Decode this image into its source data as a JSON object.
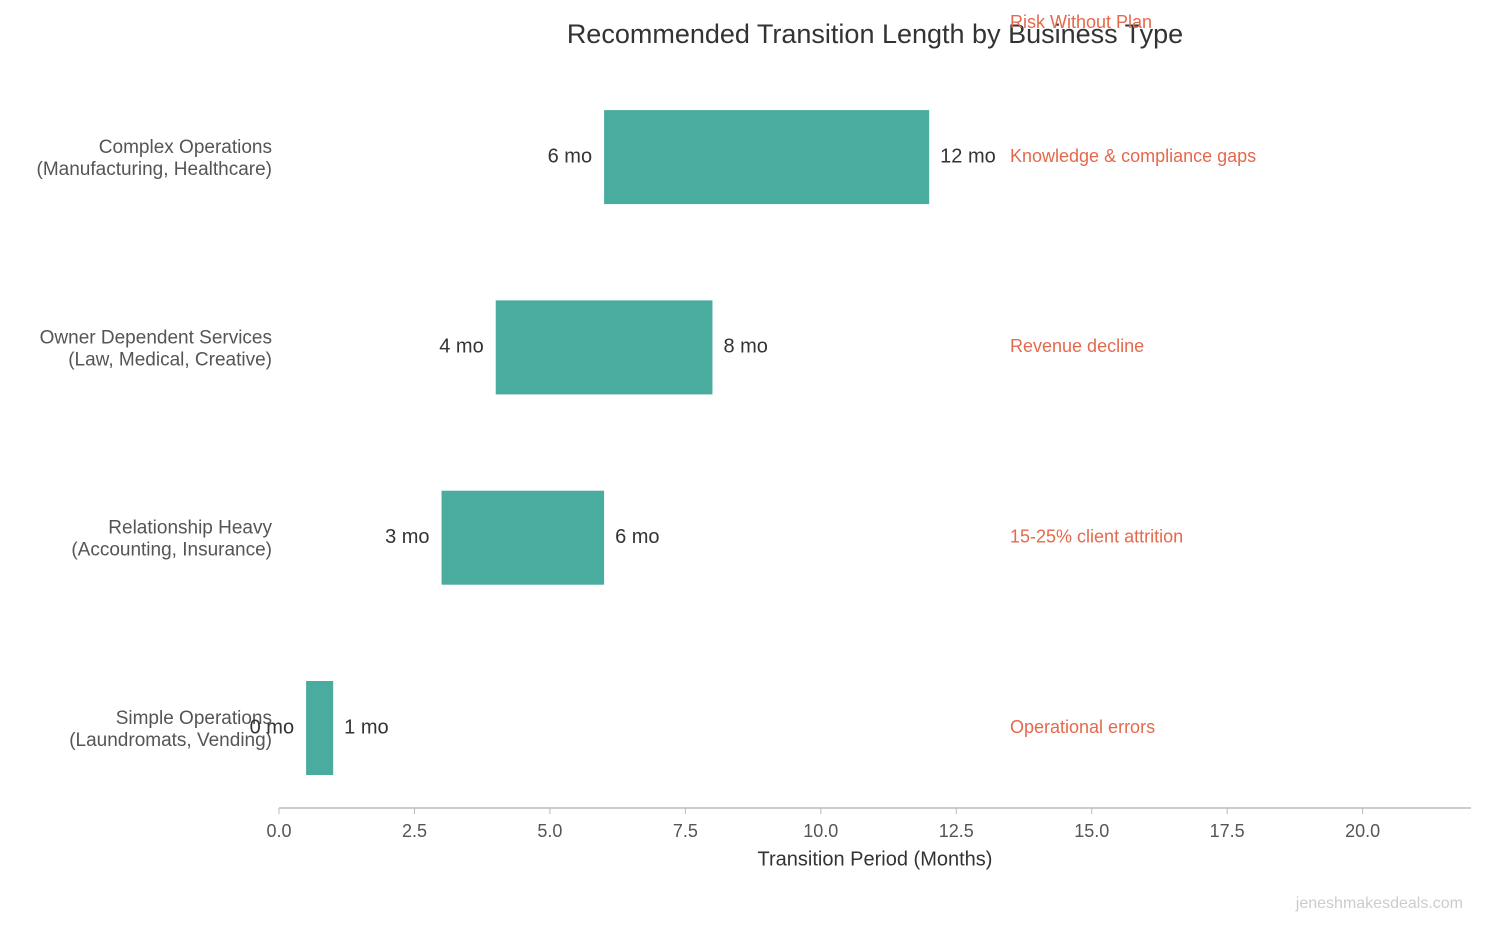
{
  "chart_data": {
    "type": "range_bar",
    "title": "Recommended Transition Length by Business Type",
    "x_label": "Transition Period (Months)",
    "categories": [
      [
        "Simple Operations",
        "(Laundromats, Vending)"
      ],
      [
        "Relationship Heavy",
        "(Accounting, Insurance)"
      ],
      [
        "Owner Dependent Services",
        "(Law, Medical, Creative)"
      ],
      [
        "Complex Operations",
        "(Manufacturing, Healthcare)"
      ]
    ],
    "start": [
      0.5,
      3,
      4,
      6
    ],
    "end": [
      1,
      6,
      8,
      12
    ],
    "start_labels": [
      "0 mo",
      "3 mo",
      "4 mo",
      "6 mo"
    ],
    "end_labels": [
      "1 mo",
      "6 mo",
      "8 mo",
      "12 mo"
    ],
    "color": "#4aab9f",
    "risk_header": "Risk Without Plan",
    "risks": [
      "Operational errors",
      "15-25% client attrition",
      "Revenue decline",
      "Knowledge & compliance gaps"
    ],
    "risk_color": "#e4694c",
    "xlim": [
      0,
      22
    ],
    "xticks": [
      {
        "value": 0,
        "label": "0.0"
      },
      2.5,
      {
        "value": 5,
        "label": "5.0"
      },
      7.5,
      {
        "value": 10,
        "label": "10.0"
      },
      12.5,
      {
        "value": 15,
        "label": "15.0"
      },
      17.5,
      {
        "value": 20,
        "label": "20.0"
      }
    ],
    "watermark": "jeneshmakesdeals.com"
  }
}
